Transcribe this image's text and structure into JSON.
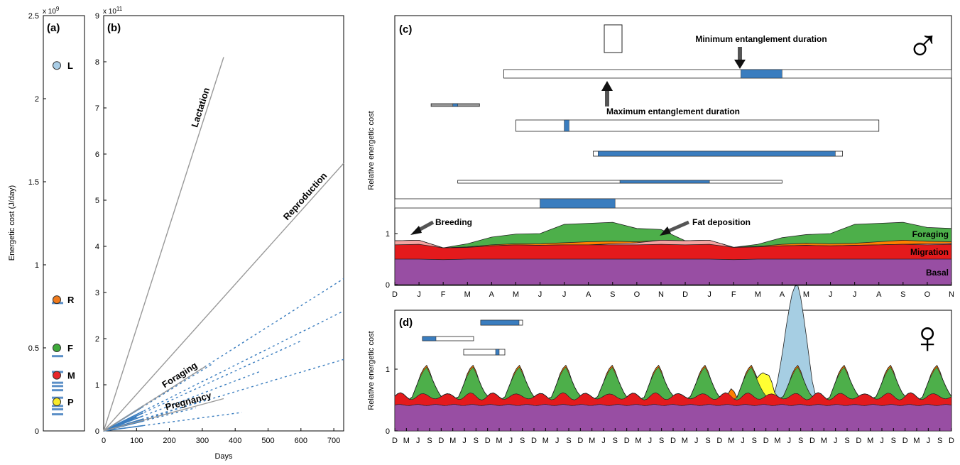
{
  "figure": {
    "title": ""
  },
  "chart_data": [
    {
      "panel": "a",
      "type": "scatter",
      "panel_label": "(a)",
      "ylabel": "Energetic cost (J/day)",
      "y_exponent": "x 10^9",
      "y_exponent_base": "x 10",
      "y_exponent_power": "9",
      "ylim": [
        0,
        2.5
      ],
      "yticks": [
        "0",
        "0.5",
        "1",
        "1.5",
        "2",
        "2.5"
      ],
      "points": [
        {
          "label": "L",
          "y": 2.2,
          "color": "#a9cde6"
        },
        {
          "label": "R",
          "y": 0.79,
          "color": "#f07a1c"
        },
        {
          "label": "F",
          "y": 0.5,
          "color": "#3eaa3a"
        },
        {
          "label": "M",
          "y": 0.335,
          "color": "#e8262b"
        },
        {
          "label": "P",
          "y": 0.175,
          "color": "#f7ea2a"
        }
      ],
      "bar_markers": [
        0.77,
        0.45,
        0.355,
        0.29,
        0.27,
        0.245,
        0.2,
        0.15,
        0.13,
        0.1
      ]
    },
    {
      "panel": "b",
      "type": "line",
      "panel_label": "(b)",
      "xlabel": "Days",
      "y_exponent": "x 10^11",
      "y_exponent_base": "x 10",
      "y_exponent_power": "11",
      "xlim": [
        0,
        730
      ],
      "ylim": [
        0,
        9
      ],
      "xticks": [
        "0",
        "100",
        "200",
        "300",
        "400",
        "500",
        "600",
        "700"
      ],
      "yticks": [
        "0",
        "1",
        "2",
        "3",
        "4",
        "5",
        "6",
        "7",
        "8",
        "9"
      ],
      "series": [
        {
          "name": "Lactation",
          "x": [
            0,
            365
          ],
          "y": [
            0,
            8.1
          ],
          "style": "solid",
          "color": "#999999"
        },
        {
          "name": "Reproduction",
          "x": [
            0,
            730
          ],
          "y": [
            0,
            5.8
          ],
          "style": "solid",
          "color": "#999999"
        },
        {
          "name": "Foraging",
          "x": [
            0,
            310
          ],
          "y": [
            0,
            1.4
          ],
          "style": "solid",
          "color": "#999999"
        },
        {
          "name": "Pregnancy",
          "x": [
            0,
            365
          ],
          "y": [
            0,
            0.7
          ],
          "style": "solid",
          "color": "#999999"
        }
      ],
      "entanglement_lines": [
        {
          "x": [
            0,
            730
          ],
          "y": [
            0,
            3.3
          ]
        },
        {
          "x": [
            0,
            730
          ],
          "y": [
            0,
            2.6
          ]
        },
        {
          "x": [
            0,
            730
          ],
          "y": [
            0,
            1.55
          ]
        },
        {
          "x": [
            0,
            600
          ],
          "y": [
            0,
            1.95
          ]
        },
        {
          "x": [
            0,
            480
          ],
          "y": [
            0,
            1.3
          ]
        },
        {
          "x": [
            0,
            330
          ],
          "y": [
            0,
            1.45
          ]
        },
        {
          "x": [
            0,
            420
          ],
          "y": [
            0,
            0.4
          ]
        },
        {
          "x": [
            0,
            280
          ],
          "y": [
            0,
            0.5
          ]
        },
        {
          "x": [
            0,
            200
          ],
          "y": [
            0,
            0.4
          ]
        },
        {
          "x": [
            0,
            300
          ],
          "y": [
            0,
            0.65
          ]
        },
        {
          "x": [
            0,
            140
          ],
          "y": [
            0,
            0.25
          ]
        },
        {
          "x": [
            0,
            100
          ],
          "y": [
            0,
            0.3
          ]
        }
      ]
    },
    {
      "panel": "c",
      "type": "area",
      "panel_label": "(c)",
      "symbol": "♂",
      "ylabel": "Relative energetic cost",
      "ylim": [
        0,
        1.5
      ],
      "yticks": [
        "0",
        "1"
      ],
      "months": [
        "D",
        "J",
        "F",
        "M",
        "A",
        "M",
        "J",
        "J",
        "A",
        "S",
        "O",
        "N",
        "D",
        "J",
        "F",
        "M",
        "A",
        "M",
        "J",
        "J",
        "A",
        "S",
        "O",
        "N"
      ],
      "layers": [
        {
          "name": "Basal",
          "color": "#984ea3",
          "values": [
            0.5,
            0.5,
            0.49,
            0.5,
            0.5,
            0.5,
            0.5,
            0.5,
            0.5,
            0.5,
            0.5,
            0.5,
            0.5,
            0.5,
            0.49,
            0.5,
            0.5,
            0.5,
            0.5,
            0.5,
            0.5,
            0.5,
            0.5,
            0.5
          ]
        },
        {
          "name": "Migration",
          "color": "#e41a1c",
          "values": [
            0.78,
            0.79,
            0.72,
            0.73,
            0.76,
            0.78,
            0.77,
            0.78,
            0.78,
            0.78,
            0.78,
            0.79,
            0.78,
            0.79,
            0.73,
            0.74,
            0.76,
            0.77,
            0.76,
            0.77,
            0.78,
            0.79,
            0.78,
            0.79
          ]
        },
        {
          "name": "Breeding",
          "color": "#f4a3a0",
          "values": [
            0.86,
            0.87,
            0.72,
            0.73,
            0.76,
            0.78,
            0.77,
            0.78,
            0.78,
            0.8,
            0.82,
            0.87,
            0.86,
            0.87,
            0.73,
            0.74,
            0.76,
            0.77,
            0.76,
            0.77,
            0.78,
            0.79,
            0.8,
            0.81
          ]
        },
        {
          "name": "Fat deposition",
          "color": "#ff7f00",
          "values": [
            0.86,
            0.87,
            0.72,
            0.74,
            0.78,
            0.8,
            0.8,
            0.82,
            0.84,
            0.85,
            0.84,
            0.87,
            0.86,
            0.87,
            0.73,
            0.75,
            0.79,
            0.81,
            0.8,
            0.81,
            0.84,
            0.87,
            0.85,
            0.84
          ]
        },
        {
          "name": "Foraging",
          "color": "#4daf4a",
          "values": [
            0.86,
            0.87,
            0.72,
            0.8,
            0.93,
            0.99,
            1.0,
            1.18,
            1.2,
            1.22,
            1.1,
            1.08,
            0.86,
            0.87,
            0.73,
            0.79,
            0.92,
            0.98,
            1.0,
            1.18,
            1.2,
            1.22,
            1.12,
            1.1
          ]
        }
      ],
      "layer_labels": [
        "Foraging",
        "Migration",
        "Basal"
      ],
      "annotations": [
        "Breeding",
        "Fat deposition",
        "Minimum entanglement duration",
        "Maximum entanglement duration"
      ],
      "entanglement_bars": [
        {
          "range": [
            7.7,
            9.0
          ],
          "blue": [
            7.7,
            9.0
          ],
          "row": "mid-small",
          "vertical": true
        },
        {
          "range": [
            4.5,
            23.0
          ],
          "blue": [
            14.3,
            16.0
          ]
        },
        {
          "range": [
            1.5,
            3.5
          ],
          "blue": [
            2.4,
            2.6
          ]
        },
        {
          "range": [
            5.0,
            20.0
          ],
          "blue": [
            7.0,
            7.2
          ]
        },
        {
          "range": [
            8.2,
            18.5
          ],
          "blue": [
            8.4,
            18.2
          ]
        },
        {
          "range": [
            2.6,
            16.0
          ],
          "blue": [
            9.3,
            13.0
          ]
        },
        {
          "range": [
            0.0,
            23.0
          ],
          "blue": [
            6.0,
            9.1
          ]
        }
      ]
    },
    {
      "panel": "d",
      "type": "area",
      "panel_label": "(d)",
      "symbol": "♀",
      "ylabel": "Relative energetic cost",
      "ylim": [
        0,
        2.0
      ],
      "yticks": [
        "0",
        "1"
      ],
      "months": [
        "D",
        "M",
        "J",
        "S",
        "D",
        "M",
        "J",
        "S",
        "D",
        "M",
        "J",
        "S",
        "D",
        "M",
        "J",
        "S",
        "D",
        "M",
        "J",
        "S",
        "D",
        "M",
        "J",
        "S",
        "D",
        "M",
        "J",
        "S",
        "D",
        "M",
        "J",
        "S",
        "D",
        "M",
        "J",
        "S",
        "D",
        "M",
        "J",
        "S",
        "D",
        "M",
        "J",
        "S",
        "D",
        "M",
        "J",
        "S",
        "D"
      ],
      "layers": [
        {
          "name": "Basal",
          "color": "#984ea3"
        },
        {
          "name": "Migration",
          "color": "#e41a1c"
        },
        {
          "name": "Breeding",
          "color": "#f4a3a0"
        },
        {
          "name": "Fat deposition",
          "color": "#ff7f00"
        },
        {
          "name": "Pregnancy",
          "color": "#ffff33"
        },
        {
          "name": "Foraging",
          "color": "#4daf4a"
        },
        {
          "name": "Lactation",
          "color": "#a6cee3"
        }
      ],
      "foraging_peak": 1.05,
      "base_level": 0.55,
      "pregnancy_peak": 1.12,
      "lactation_peak": 1.93
    }
  ]
}
